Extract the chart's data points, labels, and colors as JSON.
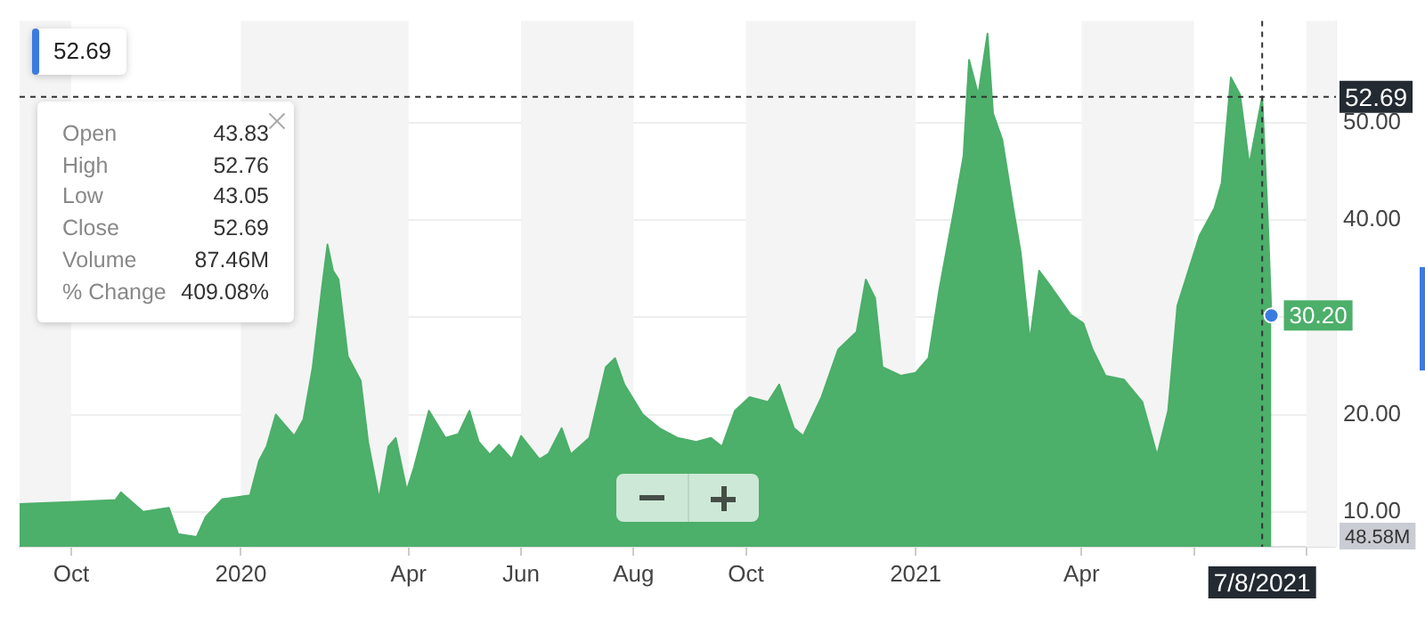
{
  "chart_data": {
    "type": "area",
    "x": [
      "2019-09-03",
      "2019-10-01",
      "2019-10-25",
      "2019-10-28",
      "2019-11-09",
      "2019-11-23",
      "2019-11-28",
      "2019-12-08",
      "2019-12-13",
      "2019-12-22",
      "2020-01-06",
      "2020-01-11",
      "2020-01-15",
      "2020-01-20",
      "2020-01-30",
      "2020-02-04",
      "2020-02-09",
      "2020-02-14",
      "2020-02-17",
      "2020-02-20",
      "2020-02-23",
      "2020-02-28",
      "2020-03-06",
      "2020-03-10",
      "2020-03-16",
      "2020-03-21",
      "2020-03-25",
      "2020-03-31",
      "2020-04-04",
      "2020-04-12",
      "2020-04-21",
      "2020-04-28",
      "2020-05-04",
      "2020-05-09",
      "2020-05-15",
      "2020-05-20",
      "2020-05-27",
      "2020-06-01",
      "2020-06-11",
      "2020-06-16",
      "2020-06-23",
      "2020-06-28",
      "2020-07-08",
      "2020-07-17",
      "2020-07-22",
      "2020-07-27",
      "2020-08-06",
      "2020-08-15",
      "2020-08-25",
      "2020-09-04",
      "2020-09-12",
      "2020-09-18",
      "2020-09-25",
      "2020-10-03",
      "2020-10-13",
      "2020-10-19",
      "2020-10-27",
      "2020-11-01",
      "2020-11-11",
      "2020-11-20",
      "2020-11-30",
      "2020-12-05",
      "2020-12-10",
      "2020-12-14",
      "2020-12-24",
      "2021-01-01",
      "2021-01-08",
      "2021-01-14",
      "2021-01-22",
      "2021-01-27",
      "2021-01-30",
      "2021-02-04",
      "2021-02-09",
      "2021-02-12",
      "2021-02-17",
      "2021-02-23",
      "2021-02-27",
      "2021-03-04",
      "2021-03-09",
      "2021-03-16",
      "2021-03-26",
      "2021-04-02",
      "2021-04-07",
      "2021-04-14",
      "2021-04-24",
      "2021-05-04",
      "2021-05-12",
      "2021-05-18",
      "2021-05-23",
      "2021-06-04",
      "2021-06-12",
      "2021-06-16",
      "2021-06-21",
      "2021-06-26",
      "2021-07-01",
      "2021-07-08",
      "2021-07-11",
      "2021-07-13"
    ],
    "series": [
      {
        "color": "#4caf6a",
        "values": [
          10.8,
          11.0,
          11.2,
          12.0,
          10.0,
          10.4,
          7.7,
          7.4,
          9.5,
          11.3,
          11.7,
          15.3,
          16.7,
          20.0,
          17.8,
          19.5,
          24.9,
          33.0,
          37.5,
          34.8,
          33.9,
          26.0,
          23.5,
          17.2,
          11.3,
          16.7,
          17.6,
          12.2,
          14.6,
          20.4,
          17.6,
          18.0,
          20.4,
          17.2,
          15.9,
          16.9,
          15.4,
          17.8,
          15.4,
          16.0,
          18.6,
          15.9,
          17.6,
          24.9,
          25.8,
          23.1,
          20.0,
          18.6,
          17.6,
          17.2,
          17.6,
          16.7,
          20.4,
          21.8,
          21.3,
          23.1,
          18.6,
          17.8,
          21.8,
          26.7,
          28.5,
          33.9,
          32.0,
          24.9,
          24.0,
          24.3,
          25.8,
          33.0,
          41.2,
          46.6,
          56.5,
          52.9,
          59.2,
          51.0,
          48.3,
          41.2,
          36.7,
          27.6,
          34.8,
          33.0,
          30.3,
          29.4,
          26.7,
          24.0,
          23.6,
          21.3,
          15.8,
          20.4,
          31.2,
          38.4,
          41.2,
          43.8,
          54.7,
          52.9,
          45.7,
          52.7,
          40.3,
          30.2
        ],
        "value_labels": [
          null,
          null,
          null,
          null,
          null,
          null,
          null,
          null,
          null,
          null,
          null,
          null,
          null,
          null,
          null,
          null,
          null,
          null,
          null,
          null,
          null,
          null,
          null,
          null,
          null,
          null,
          null,
          null,
          null,
          null,
          null,
          null,
          null,
          null,
          null,
          null,
          null,
          null,
          null,
          null,
          null,
          null,
          null,
          null,
          null,
          null,
          null,
          null,
          null,
          null,
          null,
          null,
          null,
          null,
          null,
          null,
          null,
          null,
          null,
          null,
          null,
          null,
          null,
          null,
          null,
          null,
          null,
          null,
          null,
          null,
          null,
          null,
          null,
          null,
          null,
          null,
          null,
          null,
          null,
          null,
          null,
          null,
          null,
          null,
          null,
          null,
          null,
          null,
          null,
          null,
          null,
          null,
          null,
          null,
          null,
          null,
          null,
          "30.20"
        ]
      }
    ],
    "xlim": [
      "2019-09-03",
      "2021-08-17"
    ],
    "xticks": [
      {
        "value": "2019-10-01",
        "label": "Oct"
      },
      {
        "value": "2020-01-01",
        "label": "2020"
      },
      {
        "value": "2020-04-01",
        "label": "Apr"
      },
      {
        "value": "2020-06-01",
        "label": "Jun"
      },
      {
        "value": "2020-08-01",
        "label": "Aug"
      },
      {
        "value": "2020-10-01",
        "label": "Oct"
      },
      {
        "value": "2021-01-01",
        "label": "2021"
      },
      {
        "value": "2021-04-01",
        "label": "Apr"
      },
      {
        "value": "2021-06-01",
        "label": null
      },
      {
        "value": "2021-08-01",
        "label": null
      }
    ],
    "ylim": [
      6.4,
      60.5
    ],
    "yticks": [
      {
        "value": 10,
        "label": "10.00"
      },
      {
        "value": 20,
        "label": "20.00"
      },
      {
        "value": 30,
        "label": null
      },
      {
        "value": 40,
        "label": "40.00"
      },
      {
        "value": 50,
        "label": "50.00"
      }
    ],
    "grid": "y",
    "legend": false,
    "bands": [
      {
        "axis": "x",
        "from": "2019-09-03",
        "to": "2019-10-01",
        "color": "#f4f4f4"
      },
      {
        "axis": "x",
        "from": "2020-01-01",
        "to": "2020-04-01",
        "color": "#f4f4f4"
      },
      {
        "axis": "x",
        "from": "2020-06-01",
        "to": "2020-08-01",
        "color": "#f4f4f4"
      },
      {
        "axis": "x",
        "from": "2020-10-01",
        "to": "2021-01-01",
        "color": "#f4f4f4"
      },
      {
        "axis": "x",
        "from": "2021-04-01",
        "to": "2021-06-01",
        "color": "#f4f4f4"
      },
      {
        "axis": "x",
        "from": "2021-08-01",
        "to": "2021-08-17",
        "color": "#f4f4f4"
      }
    ],
    "ref_lines": [
      {
        "axis": "y",
        "value": 52.69,
        "label": "52.69",
        "color": "#333333",
        "line_style": "dashed"
      },
      {
        "axis": "x",
        "value": "2021-07-08",
        "label": "7/8/2021",
        "color": "#333333",
        "line_style": "dashed"
      }
    ],
    "annotations": [
      "52.69",
      "Open",
      "43.83",
      "High",
      "52.76",
      "Low",
      "43.05",
      "Close",
      "52.69",
      "Volume",
      "87.46M",
      "% Change",
      "409.08%",
      "48.58M"
    ]
  }
}
